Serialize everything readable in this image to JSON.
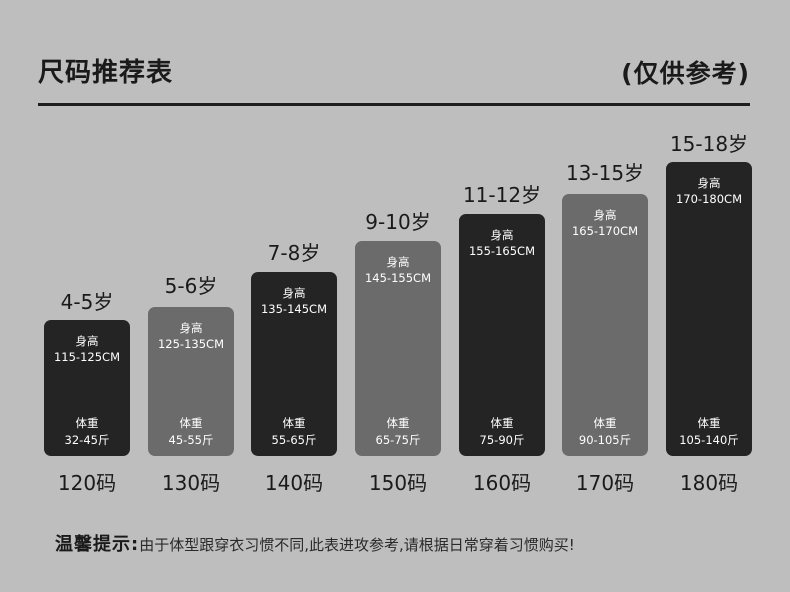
{
  "title": "尺码推荐表",
  "subtitle": "(仅供参考)",
  "height_label": "身高",
  "weight_label": "体重",
  "sizes": [
    {
      "age": "4-5岁",
      "height": "115-125CM",
      "weight": "32-45斤",
      "size": "120码",
      "color": "#242424"
    },
    {
      "age": "5-6岁",
      "height": "125-135CM",
      "weight": "45-55斤",
      "size": "130码",
      "color": "#6b6b6b"
    },
    {
      "age": "7-8岁",
      "height": "135-145CM",
      "weight": "55-65斤",
      "size": "140码",
      "color": "#242424"
    },
    {
      "age": "9-10岁",
      "height": "145-155CM",
      "weight": "65-75斤",
      "size": "150码",
      "color": "#6b6b6b"
    },
    {
      "age": "11-12岁",
      "height": "155-165CM",
      "weight": "75-90斤",
      "size": "160码",
      "color": "#242424"
    },
    {
      "age": "13-15岁",
      "height": "165-170CM",
      "weight": "90-105斤",
      "size": "170码",
      "color": "#6b6b6b"
    },
    {
      "age": "15-18岁",
      "height": "170-180CM",
      "weight": "105-140斤",
      "size": "180码",
      "color": "#242424"
    }
  ],
  "tip": {
    "heading": "温馨提示:",
    "text": "由于体型跟穿衣习惯不同,此表进攻参考,请根据日常穿着习惯购买!"
  }
}
